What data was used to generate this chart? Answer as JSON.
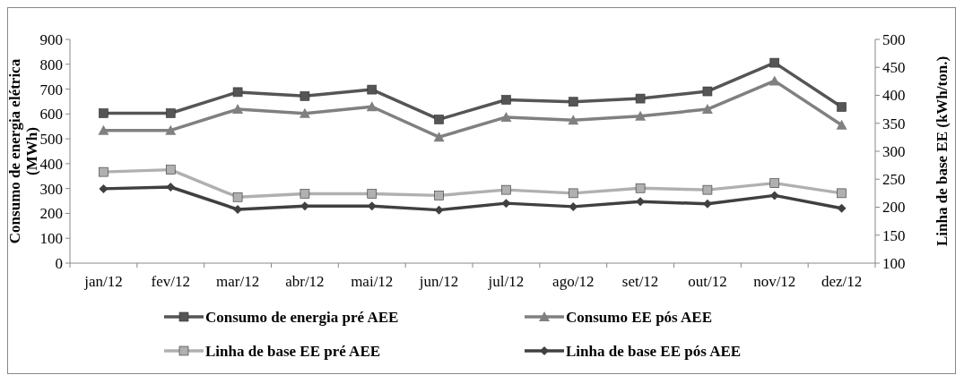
{
  "chart_data": {
    "type": "line",
    "categories": [
      "jan/12",
      "fev/12",
      "mar/12",
      "abr/12",
      "mai/12",
      "jun/12",
      "jul/12",
      "ago/12",
      "set/12",
      "out/12",
      "nov/12",
      "dez/12"
    ],
    "ylabel": "Consumo de energia elétrica (MWh)",
    "y2label": "Linha de base EE (kWh/ton.)",
    "ylim": [
      0,
      900
    ],
    "yticks": [
      0,
      100,
      200,
      300,
      400,
      500,
      600,
      700,
      800,
      900
    ],
    "y2lim": [
      100,
      500
    ],
    "y2ticks": [
      100,
      150,
      200,
      250,
      300,
      350,
      400,
      450,
      500
    ],
    "grid": false,
    "legend": "bottom",
    "line_style": "solid",
    "series": [
      {
        "name": "Consumo de energia pré AEE",
        "color": "#555555",
        "marker": "square",
        "values": [
          603,
          603,
          688,
          672,
          698,
          578,
          657,
          649,
          662,
          691,
          806,
          628
        ]
      },
      {
        "name": "Consumo EE pós AEE",
        "color": "#808080",
        "marker": "triangle",
        "values": [
          534,
          534,
          619,
          602,
          629,
          507,
          587,
          575,
          591,
          619,
          733,
          555
        ]
      },
      {
        "name": "Linha de base EE  pré AEE",
        "color": "#b0b0b0",
        "marker": "square",
        "axis": "y2",
        "values": [
          263,
          267,
          218,
          224,
          224,
          221,
          231,
          225,
          234,
          231,
          243,
          225
        ]
      },
      {
        "name": "Linha de base EE pós AEE",
        "color": "#404040",
        "marker": "diamond",
        "axis": "y2",
        "values": [
          233,
          236,
          196,
          202,
          202,
          195,
          207,
          201,
          210,
          206,
          221,
          198
        ]
      }
    ]
  }
}
